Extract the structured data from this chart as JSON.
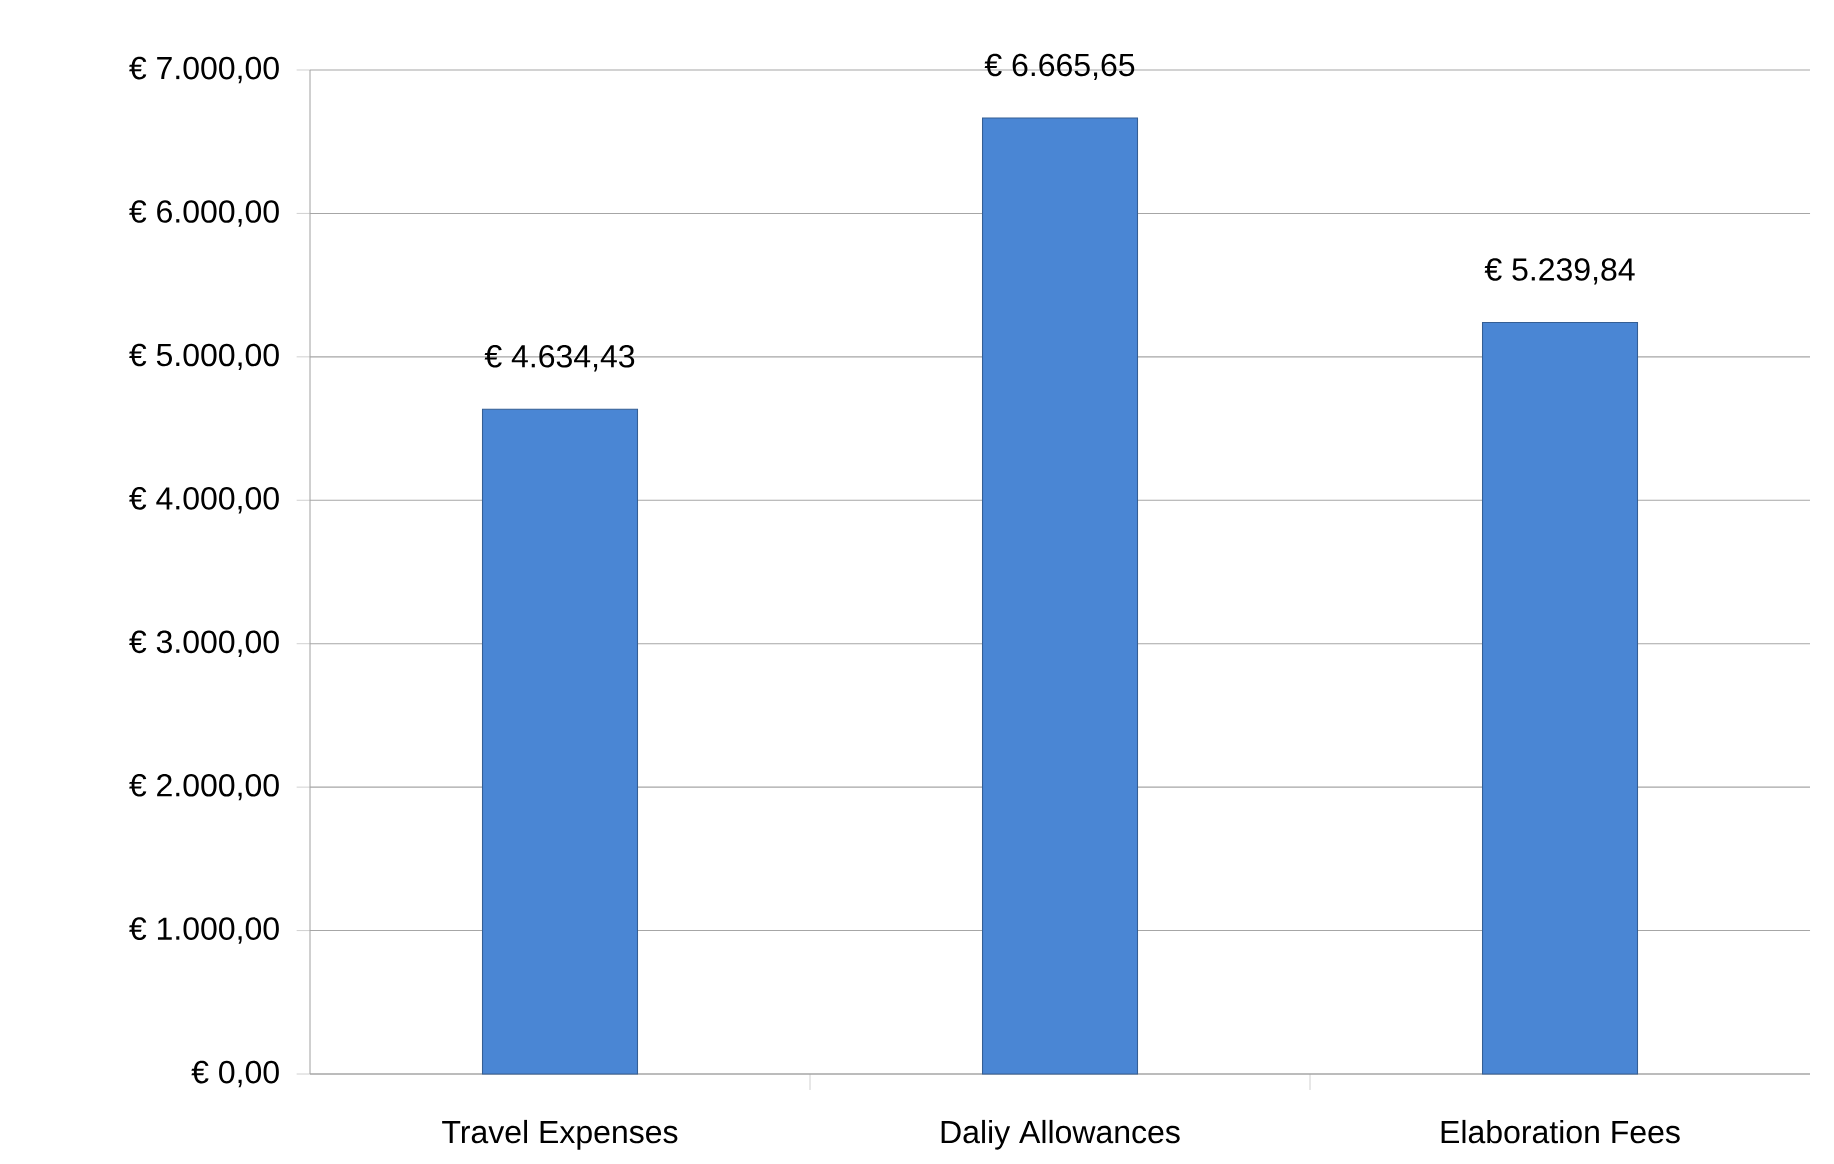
{
  "chart_data": {
    "type": "bar",
    "categories": [
      "Travel Expenses",
      "Daliy Allowances",
      "Elaboration Fees"
    ],
    "values": [
      4634.43,
      6665.65,
      5239.84
    ],
    "value_labels": [
      "€ 4.634,43",
      "€ 6.665,65",
      "€ 5.239,84"
    ],
    "color": "#4a86d4",
    "ylim": [
      0,
      7000
    ],
    "yticks": [
      {
        "value": 0,
        "label": "€ 0,00"
      },
      {
        "value": 1000,
        "label": "€ 1.000,00"
      },
      {
        "value": 2000,
        "label": "€ 2.000,00"
      },
      {
        "value": 3000,
        "label": "€ 3.000,00"
      },
      {
        "value": 4000,
        "label": "€ 4.000,00"
      },
      {
        "value": 5000,
        "label": "€ 5.000,00"
      },
      {
        "value": 6000,
        "label": "€ 6.000,00"
      },
      {
        "value": 7000,
        "label": "€ 7.000,00"
      }
    ],
    "grid": "y"
  }
}
